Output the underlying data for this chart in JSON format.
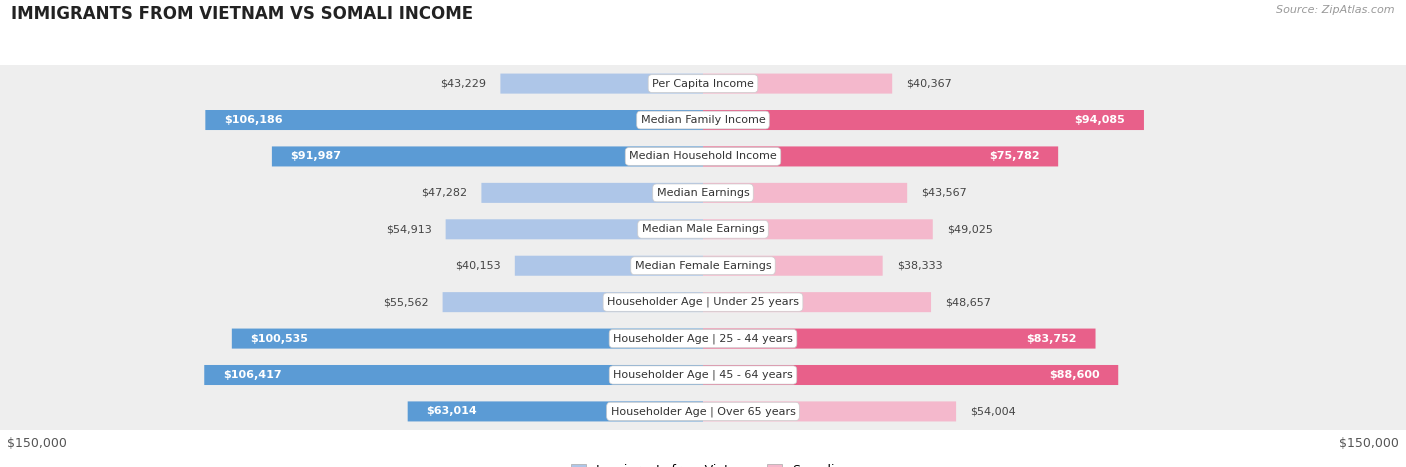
{
  "title": "IMMIGRANTS FROM VIETNAM VS SOMALI INCOME",
  "source": "Source: ZipAtlas.com",
  "categories": [
    "Per Capita Income",
    "Median Family Income",
    "Median Household Income",
    "Median Earnings",
    "Median Male Earnings",
    "Median Female Earnings",
    "Householder Age | Under 25 years",
    "Householder Age | 25 - 44 years",
    "Householder Age | 45 - 64 years",
    "Householder Age | Over 65 years"
  ],
  "vietnam_values": [
    43229,
    106186,
    91987,
    47282,
    54913,
    40153,
    55562,
    100535,
    106417,
    63014
  ],
  "somali_values": [
    40367,
    94085,
    75782,
    43567,
    49025,
    38333,
    48657,
    83752,
    88600,
    54004
  ],
  "vietnam_color_light": "#aec6e8",
  "vietnam_color_dark": "#5b9bd5",
  "somali_color_light": "#f4b8cc",
  "somali_color_dark": "#e8608a",
  "row_bg_light": "#f7f7f7",
  "row_bg_dark": "#eeeeee",
  "row_border": "#dddddd",
  "max_value": 150000,
  "legend_vietnam": "Immigrants from Vietnam",
  "legend_somali": "Somali",
  "xlabel_left": "$150,000",
  "xlabel_right": "$150,000",
  "viet_label_threshold": 58000,
  "somali_label_threshold": 58000
}
